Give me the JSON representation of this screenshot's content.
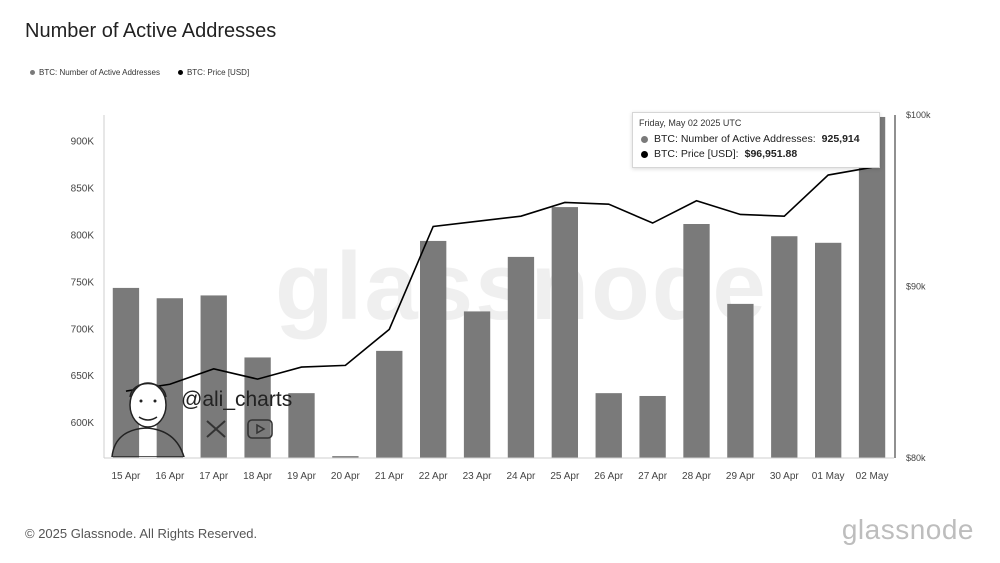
{
  "title": "Number of Active Addresses",
  "legend": [
    {
      "label": "BTC: Number of Active Addresses",
      "color": "#7a7a7a"
    },
    {
      "label": "BTC: Price [USD]",
      "color": "#000000"
    }
  ],
  "chart_data": {
    "type": "bar",
    "categories": [
      "15 Apr",
      "16 Apr",
      "17 Apr",
      "18 Apr",
      "19 Apr",
      "20 Apr",
      "21 Apr",
      "22 Apr",
      "23 Apr",
      "24 Apr",
      "25 Apr",
      "26 Apr",
      "27 Apr",
      "28 Apr",
      "29 Apr",
      "30 Apr",
      "01 May",
      "02 May"
    ],
    "series": [
      {
        "name": "BTC: Number of Active Addresses",
        "type": "bar",
        "axis": "left",
        "color": "#7a7a7a",
        "values": [
          744000,
          733000,
          736000,
          670000,
          632000,
          565000,
          677000,
          794000,
          719000,
          777000,
          830000,
          632000,
          629000,
          812000,
          727000,
          799000,
          792000,
          925914
        ]
      },
      {
        "name": "BTC: Price [USD]",
        "type": "line",
        "axis": "right",
        "color": "#000000",
        "values": [
          83900,
          84300,
          85200,
          84600,
          85300,
          85400,
          87500,
          93500,
          93800,
          94100,
          94900,
          94800,
          93700,
          95000,
          94200,
          94100,
          96500,
          96951.88
        ]
      }
    ],
    "left_axis": {
      "ticks": [
        "900K",
        "850K",
        "800K",
        "750K",
        "700K",
        "650K",
        "600K"
      ],
      "tick_values": [
        900000,
        850000,
        800000,
        750000,
        700000,
        650000,
        600000
      ],
      "ylim": [
        563000,
        928000
      ]
    },
    "right_axis": {
      "ticks": [
        "$100k",
        "$90k",
        "$80k"
      ],
      "tick_values": [
        100000,
        90000,
        80000
      ],
      "ylim": [
        80000,
        100000
      ]
    },
    "grid": false,
    "legend_position": "top-left"
  },
  "tooltip": {
    "date": "Friday, May 02 2025 UTC",
    "addresses_label": "BTC: Number of Active Addresses:",
    "addresses_value": "925,914",
    "price_label": "BTC: Price [USD]:",
    "price_value": "$96,951.88"
  },
  "watermark": "glassnode",
  "brand": {
    "handle": "@ali_charts"
  },
  "footer": {
    "copyright": "© 2025 Glassnode. All Rights Reserved.",
    "logo": "glassnode"
  }
}
